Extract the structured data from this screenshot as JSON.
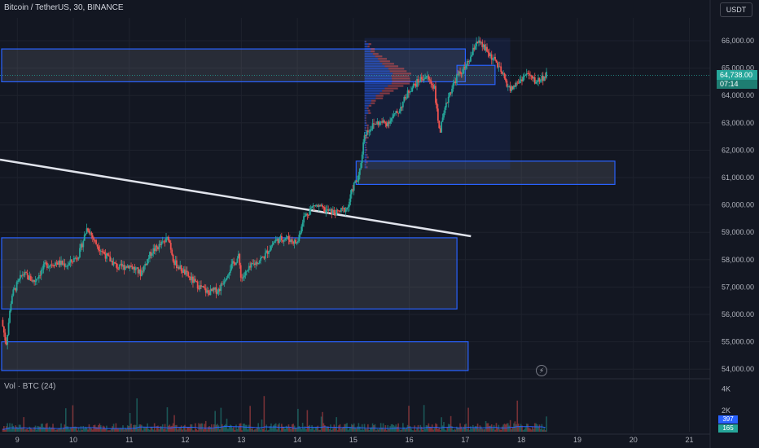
{
  "header": {
    "title": "Bitcoin / TetherUS, 30, BINANCE",
    "currency_button": "USDT"
  },
  "last_price": {
    "value": "64,738.00",
    "countdown": "07:14"
  },
  "volume_panel": {
    "label": "Vol · BTC (24)",
    "y_ticks": [
      "4K",
      "2K"
    ],
    "badge_blue": "397",
    "badge_green": "165"
  },
  "colors": {
    "up": "#26a69a",
    "down": "#ef5350",
    "zone_stroke": "#2962ff",
    "trendline": "#e0e3eb",
    "background": "#131722"
  },
  "icons": {
    "lightning": "lightning-icon"
  },
  "chart_data": {
    "type": "candlestick",
    "symbol": "Bitcoin / TetherUS",
    "timeframe": "30",
    "exchange": "BINANCE",
    "y_ticks": [
      66000,
      65000,
      64000,
      63000,
      62000,
      61000,
      60000,
      59000,
      58000,
      57000,
      56000,
      55000,
      54000
    ],
    "y_tick_labels": [
      "66,000.00",
      "65,000.00",
      "64,000.00",
      "63,000.00",
      "62,000.00",
      "61,000.00",
      "60,000.00",
      "59,000.00",
      "58,000.00",
      "57,000.00",
      "56,000.00",
      "55,000.00",
      "54,000.00"
    ],
    "x_ticks": [
      9,
      10,
      11,
      12,
      13,
      14,
      15,
      16,
      17,
      18,
      19,
      20,
      21
    ],
    "ylim": [
      53600,
      66400
    ],
    "xlim": [
      8.72,
      21.4
    ],
    "price_path": [
      [
        8.72,
        55800
      ],
      [
        8.8,
        54900
      ],
      [
        8.9,
        56700
      ],
      [
        9.1,
        57500
      ],
      [
        9.3,
        57200
      ],
      [
        9.5,
        57800
      ],
      [
        9.7,
        57900
      ],
      [
        9.9,
        57800
      ],
      [
        10.1,
        58200
      ],
      [
        10.25,
        59200
      ],
      [
        10.4,
        58600
      ],
      [
        10.6,
        58100
      ],
      [
        10.8,
        57700
      ],
      [
        11.0,
        57800
      ],
      [
        11.2,
        57500
      ],
      [
        11.4,
        58300
      ],
      [
        11.6,
        58600
      ],
      [
        11.7,
        58800
      ],
      [
        11.8,
        57900
      ],
      [
        12.0,
        57500
      ],
      [
        12.2,
        57100
      ],
      [
        12.4,
        56800
      ],
      [
        12.6,
        56900
      ],
      [
        12.8,
        57700
      ],
      [
        12.95,
        58100
      ],
      [
        13.0,
        57300
      ],
      [
        13.2,
        57800
      ],
      [
        13.4,
        58100
      ],
      [
        13.6,
        58700
      ],
      [
        13.8,
        58800
      ],
      [
        14.0,
        58600
      ],
      [
        14.1,
        59500
      ],
      [
        14.3,
        60000
      ],
      [
        14.5,
        59800
      ],
      [
        14.7,
        59700
      ],
      [
        14.9,
        59900
      ],
      [
        15.0,
        60700
      ],
      [
        15.1,
        61000
      ],
      [
        15.2,
        62600
      ],
      [
        15.4,
        63000
      ],
      [
        15.6,
        63000
      ],
      [
        15.8,
        63400
      ],
      [
        16.0,
        64200
      ],
      [
        16.2,
        64600
      ],
      [
        16.3,
        64700
      ],
      [
        16.45,
        64300
      ],
      [
        16.5,
        63200
      ],
      [
        16.55,
        62700
      ],
      [
        16.7,
        64000
      ],
      [
        16.85,
        64700
      ],
      [
        17.0,
        65000
      ],
      [
        17.1,
        65400
      ],
      [
        17.2,
        66000
      ],
      [
        17.35,
        65700
      ],
      [
        17.55,
        65200
      ],
      [
        17.7,
        64600
      ],
      [
        17.8,
        64200
      ],
      [
        17.95,
        64500
      ],
      [
        18.1,
        64800
      ],
      [
        18.25,
        64500
      ],
      [
        18.45,
        64738
      ]
    ],
    "volume_ylim": [
      0,
      4200
    ],
    "volume_ticks": [
      4000,
      2000
    ],
    "volume_ma_values": [
      397,
      165
    ],
    "last_price": 64738
  }
}
